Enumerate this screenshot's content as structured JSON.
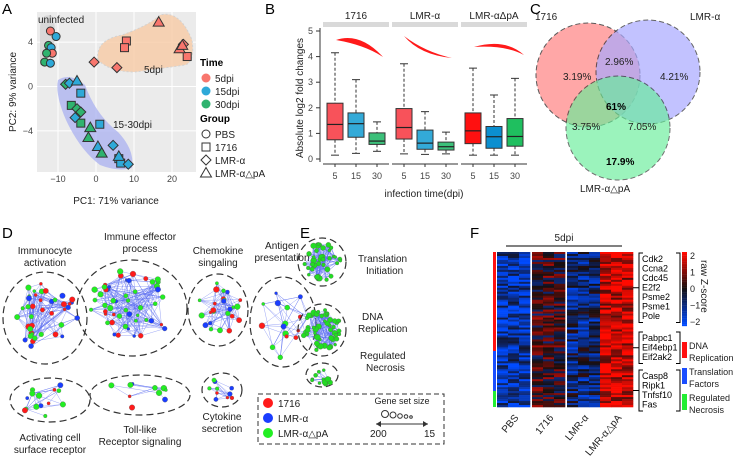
{
  "panels": {
    "A": "A",
    "B": "B",
    "C": "C",
    "D": "D",
    "E": "E",
    "F": "F"
  },
  "chart_data": [
    {
      "id": "A",
      "type": "scatter",
      "xlabel": "PC1: 71% variance",
      "ylabel": "PC2: 9% variance",
      "xlim": [
        -14,
        26
      ],
      "ylim": [
        -7.5,
        6.5
      ],
      "xticks": [
        -10,
        0,
        10,
        20
      ],
      "yticks": [
        -4,
        0,
        4
      ],
      "annotations": [
        "uninfected",
        "5dpi",
        "15-30dpi"
      ],
      "legend": {
        "time_title": "Time",
        "time": [
          {
            "label": "5dpi",
            "color": "#f8766d"
          },
          {
            "label": "15dpi",
            "color": "#2ea9d8"
          },
          {
            "label": "30dpi",
            "color": "#2fb36f"
          }
        ],
        "group_title": "Group",
        "group": [
          {
            "label": "PBS",
            "shape": "circle"
          },
          {
            "label": "1716",
            "shape": "square"
          },
          {
            "label": "LMR-α",
            "shape": "diamond"
          },
          {
            "label": "LMR-α△pA",
            "shape": "triangle"
          }
        ]
      },
      "points": [
        {
          "x": -12,
          "y": 5,
          "time": "5dpi",
          "group": "PBS"
        },
        {
          "x": -10.5,
          "y": 4.5,
          "time": "15dpi",
          "group": "PBS"
        },
        {
          "x": -12.5,
          "y": 3.7,
          "time": "30dpi",
          "group": "PBS"
        },
        {
          "x": -11.8,
          "y": 3.5,
          "time": "15dpi",
          "group": "PBS"
        },
        {
          "x": -11.5,
          "y": 3,
          "time": "5dpi",
          "group": "PBS"
        },
        {
          "x": -13,
          "y": 3,
          "time": "30dpi",
          "group": "PBS"
        },
        {
          "x": -13.5,
          "y": 2.2,
          "time": "30dpi",
          "group": "PBS"
        },
        {
          "x": -12,
          "y": 2.1,
          "time": "15dpi",
          "group": "PBS"
        },
        {
          "x": 8,
          "y": 4.1,
          "time": "5dpi",
          "group": "1716"
        },
        {
          "x": 7.5,
          "y": 3.5,
          "time": "5dpi",
          "group": "1716"
        },
        {
          "x": 24,
          "y": 2.7,
          "time": "5dpi",
          "group": "1716"
        },
        {
          "x": -4,
          "y": -0.6,
          "time": "15dpi",
          "group": "1716"
        },
        {
          "x": -6.5,
          "y": -1.7,
          "time": "30dpi",
          "group": "1716"
        },
        {
          "x": -4,
          "y": -3.3,
          "time": "30dpi",
          "group": "1716"
        },
        {
          "x": 1,
          "y": -3.4,
          "time": "15dpi",
          "group": "1716"
        },
        {
          "x": 6,
          "y": -6.5,
          "time": "15dpi",
          "group": "1716"
        },
        {
          "x": 6.5,
          "y": -6.9,
          "time": "15dpi",
          "group": "1716"
        },
        {
          "x": -0.5,
          "y": 2.2,
          "time": "5dpi",
          "group": "LMR-α"
        },
        {
          "x": 5.5,
          "y": 1.7,
          "time": "5dpi",
          "group": "LMR-α"
        },
        {
          "x": 23,
          "y": 3.8,
          "time": "5dpi",
          "group": "LMR-α"
        },
        {
          "x": -8,
          "y": 0.2,
          "time": "30dpi",
          "group": "LMR-α"
        },
        {
          "x": -7,
          "y": 0.3,
          "time": "15dpi",
          "group": "LMR-α"
        },
        {
          "x": -5,
          "y": -2,
          "time": "30dpi",
          "group": "LMR-α"
        },
        {
          "x": -4,
          "y": -2.3,
          "time": "30dpi",
          "group": "LMR-α"
        },
        {
          "x": -5.5,
          "y": -2.8,
          "time": "15dpi",
          "group": "LMR-α"
        },
        {
          "x": 4.5,
          "y": -5.3,
          "time": "15dpi",
          "group": "LMR-α"
        },
        {
          "x": 8.5,
          "y": -7,
          "time": "15dpi",
          "group": "LMR-α"
        },
        {
          "x": 16.5,
          "y": 5.8,
          "time": "5dpi",
          "group": "LMR-α△pA"
        },
        {
          "x": 22,
          "y": 3.4,
          "time": "5dpi",
          "group": "LMR-α△pA"
        },
        {
          "x": 22.7,
          "y": 3.7,
          "time": "5dpi",
          "group": "LMR-α△pA"
        },
        {
          "x": -5,
          "y": 0.5,
          "time": "15dpi",
          "group": "LMR-α△pA"
        },
        {
          "x": -1.5,
          "y": -3.7,
          "time": "30dpi",
          "group": "LMR-α△pA"
        },
        {
          "x": -2,
          "y": -4.6,
          "time": "30dpi",
          "group": "LMR-α△pA"
        },
        {
          "x": 0.5,
          "y": -5.4,
          "time": "15dpi",
          "group": "LMR-α△pA"
        },
        {
          "x": 1.5,
          "y": -6,
          "time": "30dpi",
          "group": "LMR-α△pA"
        },
        {
          "x": 6,
          "y": -6.3,
          "time": "15dpi",
          "group": "LMR-α△pA"
        }
      ]
    },
    {
      "id": "B",
      "type": "box",
      "xlabel": "infection time(dpi)",
      "ylabel": "Absolute log2 fold changes",
      "ylim": [
        0,
        5
      ],
      "yticks": [
        0,
        1,
        2,
        3,
        4,
        5
      ],
      "facets": [
        {
          "name": "1716",
          "colors": [
            "#f8525a",
            "#33aad8",
            "#3cc07a"
          ],
          "boxes": [
            {
              "x": "5",
              "min": 0.15,
              "q1": 0.75,
              "median": 1.35,
              "q3": 2.18,
              "max": 4.15
            },
            {
              "x": "15",
              "min": 0.22,
              "q1": 0.85,
              "median": 1.38,
              "q3": 1.8,
              "max": 3.1
            },
            {
              "x": "30",
              "min": 0.3,
              "q1": 0.57,
              "median": 0.7,
              "q3": 1.02,
              "max": 1.45
            }
          ]
        },
        {
          "name": "LMR-α",
          "colors": [
            "#f8525a",
            "#33aad8",
            "#3cc07a"
          ],
          "boxes": [
            {
              "x": "5",
              "min": 0.2,
              "q1": 0.78,
              "median": 1.23,
              "q3": 1.97,
              "max": 3.72
            },
            {
              "x": "15",
              "min": 0.18,
              "q1": 0.38,
              "median": 0.62,
              "q3": 1.13,
              "max": 1.85
            },
            {
              "x": "30",
              "min": 0.2,
              "q1": 0.35,
              "median": 0.48,
              "q3": 0.66,
              "max": 1.05
            }
          ]
        },
        {
          "name": "LMR-αΔpA",
          "colors": [
            "#ff1010",
            "#0b8fd0",
            "#1fbf5f"
          ],
          "boxes": [
            {
              "x": "5",
              "min": 0.15,
              "q1": 0.6,
              "median": 1.1,
              "q3": 1.8,
              "max": 3.55
            },
            {
              "x": "15",
              "min": 0.15,
              "q1": 0.42,
              "median": 0.87,
              "q3": 1.27,
              "max": 2.5
            },
            {
              "x": "30",
              "min": 0.15,
              "q1": 0.5,
              "median": 0.88,
              "q3": 1.58,
              "max": 3.15
            }
          ]
        }
      ]
    },
    {
      "id": "C",
      "type": "venn",
      "sets": [
        {
          "name": "1716",
          "color": "#ff8a8a"
        },
        {
          "name": "LMR-α",
          "color": "#a9a9ff"
        },
        {
          "name": "LMR-α△pA",
          "color": "#66ee99"
        }
      ],
      "regions": {
        "1716_only": "3.19%",
        "1716_LMR": "2.96%",
        "LMR_only": "4.21%",
        "all": "61%",
        "1716_dpA": "3.75%",
        "LMR_dpA": "7.05%",
        "dpA_only": "17.9%"
      }
    },
    {
      "id": "F",
      "type": "heatmap",
      "title": "5dpi",
      "columns": [
        "PBS",
        "1716",
        "LMR-α",
        "LMR-α△pA"
      ],
      "colorbar": {
        "title": "raw Z-score",
        "ticks": [
          "2",
          "1",
          "0",
          "−1",
          "−2"
        ],
        "range": [
          -2,
          2
        ]
      },
      "gene_groups": [
        [
          "Cdk2",
          "Ccna2",
          "Cdc45",
          "E2f2",
          "Psme2",
          "Psme1",
          "Pole"
        ],
        [
          "Pabpc1",
          "Eif4ebp1",
          "Eif2ak2"
        ],
        [
          "Casp8",
          "Ripk1",
          "Tnfsf10",
          "Fas"
        ]
      ],
      "row_annotations": [
        {
          "label1": "DNA",
          "label2": "Replication",
          "color": "#ff1010"
        },
        {
          "label1": "Translation",
          "label2": "Factors",
          "color": "#1a4dff"
        },
        {
          "label1": "Regulated",
          "label2": "Necrosis",
          "color": "#22ee33"
        }
      ]
    }
  ],
  "networkD": {
    "clusters": [
      {
        "l1": "Immunocyte",
        "l2": "activation"
      },
      {
        "l1": "Immune effector",
        "l2": "process"
      },
      {
        "l1": "Chemokine",
        "l2": "singaling"
      },
      {
        "l1": "Antigen",
        "l2": "presentation"
      },
      {
        "l1": "Activating cell",
        "l2": "surface receptor"
      },
      {
        "l1": "Toll-like",
        "l2": "Receptor signaling"
      },
      {
        "l1": "Cytokine",
        "l2": "secretion"
      }
    ],
    "legend": [
      {
        "label": "1716",
        "color": "#ff1a1a"
      },
      {
        "label": "LMR-α",
        "color": "#1a3dff"
      },
      {
        "label": "LMR-α△pA",
        "color": "#22ee22"
      }
    ],
    "size_legend": {
      "title": "Gene set size",
      "min": "200",
      "max": "15"
    }
  },
  "networkE": {
    "clusters": [
      {
        "l1": "Translation",
        "l2": "Initiation"
      },
      {
        "l1": "DNA",
        "l2": "Replication"
      },
      {
        "l1": "Regulated",
        "l2": "Necrosis"
      }
    ]
  }
}
